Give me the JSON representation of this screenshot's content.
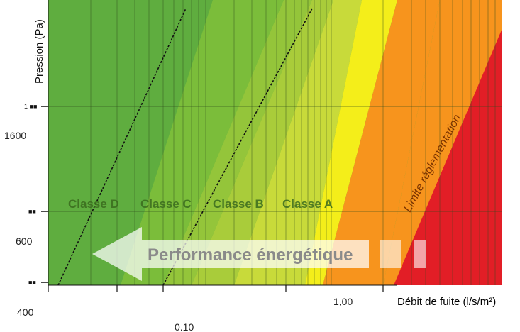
{
  "chart_data": {
    "type": "area",
    "xlabel": "Débit de fuite (l/s/m²)",
    "ylabel": "Pression (Pa)",
    "x_ticks": [
      {
        "value": 0.1,
        "label": "0.10"
      },
      {
        "value": 1.0,
        "label": "1,00"
      }
    ],
    "y_ticks": [
      {
        "value": 400,
        "label": "400"
      },
      {
        "value": 600,
        "label": "600"
      },
      {
        "value": 1600,
        "label": "1600"
      }
    ],
    "zones": [
      {
        "name": "Classe D",
        "color": "#5fad3f"
      },
      {
        "name": "Classe C",
        "color": "#7bbd3a"
      },
      {
        "name": "Classe B",
        "color": "#a9cc3a"
      },
      {
        "name": "Classe A",
        "color": "#c8da3a"
      },
      {
        "name": "",
        "color": "#fff200"
      },
      {
        "name": "",
        "color": "#f7941d"
      },
      {
        "name": "Limite réglementation",
        "color": "#e21e26"
      }
    ],
    "class_labels": [
      "Classe D",
      "Classe C",
      "Classe B",
      "Classe A"
    ],
    "limit_label": "Limite réglementation",
    "arrow_label": "Performance énergétique",
    "grid": true
  }
}
